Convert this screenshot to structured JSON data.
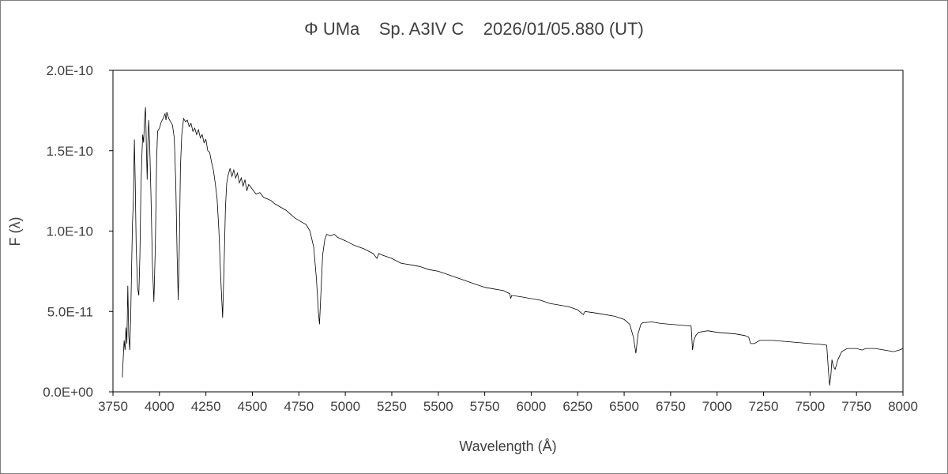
{
  "chart_data": {
    "type": "line",
    "title": "Φ UMa    Sp. A3IV C    2026/01/05.880 (UT)",
    "xlabel": "Wavelength (Å)",
    "ylabel": "F (λ)",
    "xlim": [
      3750,
      8000
    ],
    "ylim": [
      0,
      2e-10
    ],
    "xticks": [
      3750,
      4000,
      4250,
      4500,
      4750,
      5000,
      5250,
      5500,
      5750,
      6000,
      6250,
      6500,
      6750,
      7000,
      7250,
      7500,
      7750,
      8000
    ],
    "xtick_labels": [
      "3750",
      "4000",
      "4250",
      "4500",
      "4750",
      "5000",
      "5250",
      "5500",
      "5750",
      "6000",
      "6250",
      "6500",
      "6750",
      "7000",
      "7250",
      "7500",
      "7750",
      "8000"
    ],
    "yticks": [
      0,
      5e-11,
      1e-10,
      1.5e-10,
      2e-10
    ],
    "ytick_labels": [
      "0.0E+00",
      "5.0E-11",
      "1.0E-10",
      "1.5E-10",
      "2.0E-10"
    ],
    "grid": false,
    "legend": "none",
    "line_color": "#000000",
    "flux_unit_scale": 1e-11,
    "series": [
      {
        "name": "spectrum",
        "points": [
          [
            3800,
            0.9
          ],
          [
            3805,
            2.0
          ],
          [
            3810,
            3.2
          ],
          [
            3815,
            2.6
          ],
          [
            3820,
            4.0
          ],
          [
            3825,
            3.0
          ],
          [
            3830,
            6.6
          ],
          [
            3835,
            3.5
          ],
          [
            3840,
            2.6
          ],
          [
            3845,
            4.5
          ],
          [
            3850,
            7.5
          ],
          [
            3855,
            10.5
          ],
          [
            3860,
            12.0
          ],
          [
            3865,
            15.7
          ],
          [
            3870,
            13.0
          ],
          [
            3875,
            9.0
          ],
          [
            3882,
            6.5
          ],
          [
            3889,
            6.0
          ],
          [
            3895,
            8.5
          ],
          [
            3900,
            12.5
          ],
          [
            3905,
            14.5
          ],
          [
            3910,
            16.0
          ],
          [
            3915,
            15.5
          ],
          [
            3920,
            17.0
          ],
          [
            3925,
            17.7
          ],
          [
            3930,
            15.0
          ],
          [
            3934,
            13.2
          ],
          [
            3938,
            15.5
          ],
          [
            3942,
            16.9
          ],
          [
            3947,
            15.5
          ],
          [
            3955,
            12.0
          ],
          [
            3962,
            8.0
          ],
          [
            3970,
            5.6
          ],
          [
            3978,
            9.0
          ],
          [
            3985,
            14.5
          ],
          [
            3990,
            16.2
          ],
          [
            4000,
            16.4
          ],
          [
            4010,
            16.8
          ],
          [
            4020,
            17.0
          ],
          [
            4030,
            17.3
          ],
          [
            4035,
            16.9
          ],
          [
            4040,
            17.4
          ],
          [
            4050,
            17.0
          ],
          [
            4060,
            16.8
          ],
          [
            4070,
            16.6
          ],
          [
            4080,
            15.8
          ],
          [
            4088,
            13.0
          ],
          [
            4095,
            8.5
          ],
          [
            4101,
            5.7
          ],
          [
            4107,
            9.0
          ],
          [
            4113,
            14.0
          ],
          [
            4120,
            16.0
          ],
          [
            4130,
            17.0
          ],
          [
            4140,
            16.8
          ],
          [
            4150,
            16.9
          ],
          [
            4160,
            16.5
          ],
          [
            4170,
            16.7
          ],
          [
            4180,
            16.2
          ],
          [
            4190,
            16.4
          ],
          [
            4200,
            16.0
          ],
          [
            4210,
            16.3
          ],
          [
            4220,
            15.8
          ],
          [
            4230,
            16.0
          ],
          [
            4240,
            15.5
          ],
          [
            4250,
            15.7
          ],
          [
            4260,
            15.0
          ],
          [
            4270,
            14.9
          ],
          [
            4280,
            14.3
          ],
          [
            4290,
            13.8
          ],
          [
            4300,
            13.0
          ],
          [
            4310,
            12.0
          ],
          [
            4320,
            10.0
          ],
          [
            4330,
            7.0
          ],
          [
            4340,
            4.6
          ],
          [
            4348,
            8.0
          ],
          [
            4355,
            11.5
          ],
          [
            4362,
            13.0
          ],
          [
            4370,
            13.5
          ],
          [
            4380,
            13.9
          ],
          [
            4390,
            13.4
          ],
          [
            4400,
            13.8
          ],
          [
            4410,
            13.3
          ],
          [
            4420,
            13.6
          ],
          [
            4430,
            13.0
          ],
          [
            4440,
            13.3
          ],
          [
            4450,
            12.8
          ],
          [
            4460,
            13.2
          ],
          [
            4470,
            12.5
          ],
          [
            4480,
            12.9
          ],
          [
            4500,
            12.6
          ],
          [
            4520,
            12.3
          ],
          [
            4540,
            12.4
          ],
          [
            4560,
            12.1
          ],
          [
            4580,
            12.0
          ],
          [
            4600,
            11.9
          ],
          [
            4620,
            11.7
          ],
          [
            4650,
            11.5
          ],
          [
            4680,
            11.3
          ],
          [
            4700,
            11.1
          ],
          [
            4730,
            10.8
          ],
          [
            4760,
            10.6
          ],
          [
            4790,
            10.4
          ],
          [
            4810,
            10.0
          ],
          [
            4830,
            9.0
          ],
          [
            4845,
            7.0
          ],
          [
            4855,
            5.0
          ],
          [
            4861,
            4.2
          ],
          [
            4868,
            6.0
          ],
          [
            4878,
            8.5
          ],
          [
            4890,
            9.5
          ],
          [
            4900,
            9.8
          ],
          [
            4920,
            9.7
          ],
          [
            4940,
            9.8
          ],
          [
            4960,
            9.6
          ],
          [
            4980,
            9.5
          ],
          [
            5000,
            9.4
          ],
          [
            5050,
            9.1
          ],
          [
            5100,
            8.9
          ],
          [
            5150,
            8.6
          ],
          [
            5170,
            8.3
          ],
          [
            5180,
            8.6
          ],
          [
            5200,
            8.5
          ],
          [
            5250,
            8.3
          ],
          [
            5300,
            8.0
          ],
          [
            5350,
            7.9
          ],
          [
            5400,
            7.8
          ],
          [
            5450,
            7.6
          ],
          [
            5500,
            7.5
          ],
          [
            5550,
            7.3
          ],
          [
            5600,
            7.1
          ],
          [
            5650,
            6.9
          ],
          [
            5700,
            6.7
          ],
          [
            5750,
            6.5
          ],
          [
            5800,
            6.4
          ],
          [
            5850,
            6.3
          ],
          [
            5885,
            6.1
          ],
          [
            5890,
            5.8
          ],
          [
            5895,
            6.0
          ],
          [
            5950,
            5.9
          ],
          [
            6000,
            5.8
          ],
          [
            6050,
            5.7
          ],
          [
            6100,
            5.5
          ],
          [
            6150,
            5.4
          ],
          [
            6200,
            5.3
          ],
          [
            6250,
            5.1
          ],
          [
            6280,
            4.8
          ],
          [
            6290,
            5.0
          ],
          [
            6350,
            4.9
          ],
          [
            6400,
            4.8
          ],
          [
            6450,
            4.7
          ],
          [
            6500,
            4.5
          ],
          [
            6530,
            4.2
          ],
          [
            6550,
            3.4
          ],
          [
            6563,
            2.4
          ],
          [
            6575,
            3.6
          ],
          [
            6590,
            4.2
          ],
          [
            6600,
            4.3
          ],
          [
            6650,
            4.35
          ],
          [
            6700,
            4.25
          ],
          [
            6750,
            4.2
          ],
          [
            6800,
            4.15
          ],
          [
            6860,
            4.1
          ],
          [
            6868,
            2.6
          ],
          [
            6875,
            3.2
          ],
          [
            6885,
            3.5
          ],
          [
            6900,
            3.7
          ],
          [
            6950,
            3.8
          ],
          [
            7000,
            3.7
          ],
          [
            7050,
            3.65
          ],
          [
            7100,
            3.6
          ],
          [
            7150,
            3.5
          ],
          [
            7170,
            3.4
          ],
          [
            7180,
            3.0
          ],
          [
            7200,
            3.0
          ],
          [
            7230,
            3.2
          ],
          [
            7260,
            3.2
          ],
          [
            7300,
            3.2
          ],
          [
            7350,
            3.15
          ],
          [
            7400,
            3.1
          ],
          [
            7450,
            3.05
          ],
          [
            7500,
            3.0
          ],
          [
            7560,
            2.95
          ],
          [
            7590,
            2.9
          ],
          [
            7598,
            1.5
          ],
          [
            7605,
            0.4
          ],
          [
            7612,
            1.0
          ],
          [
            7618,
            2.0
          ],
          [
            7625,
            1.6
          ],
          [
            7635,
            1.4
          ],
          [
            7650,
            2.0
          ],
          [
            7670,
            2.5
          ],
          [
            7700,
            2.7
          ],
          [
            7750,
            2.7
          ],
          [
            7780,
            2.6
          ],
          [
            7800,
            2.7
          ],
          [
            7850,
            2.7
          ],
          [
            7900,
            2.6
          ],
          [
            7950,
            2.5
          ],
          [
            7980,
            2.6
          ],
          [
            8000,
            2.7
          ]
        ]
      }
    ]
  }
}
